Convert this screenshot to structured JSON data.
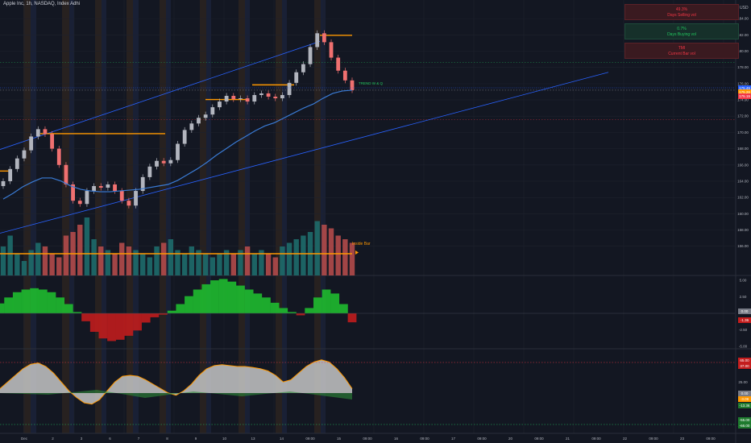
{
  "header": {
    "title": "Apple Inc, 1h, NASDAQ, Index Adhi"
  },
  "currency": "USD",
  "info_panel": [
    {
      "line1": "49.3%",
      "line2": "Days Selling vol",
      "tone": "red"
    },
    {
      "line1": "0.7%",
      "line2": "Days Buying vol",
      "tone": "green"
    },
    {
      "line1": "TMI",
      "line2": "Current Bar vol",
      "tone": "red"
    }
  ],
  "annotations": {
    "inside_bar": "Inside Bar",
    "bar_label": "TREND W & Q"
  },
  "price_tags": [
    {
      "text": "175.49",
      "price": 175.49,
      "color": "#2962ff"
    },
    {
      "text": "175.28",
      "price": 175.1,
      "color": "#ff9800"
    },
    {
      "text": "175.19",
      "price": 174.8,
      "color": "#f23645"
    }
  ],
  "colors": {
    "background": "#131722",
    "grid": "#1e222d",
    "up": "#b2b5be",
    "down": "#f07070",
    "accent_orange": "#ff9800",
    "ema": "#3a7bd5",
    "channel": "#2962ff",
    "vol_up": "#1e6b6b",
    "vol_down": "#b24a4a",
    "hist_pos": "#1fbf2f",
    "hist_neg": "#c41d1d"
  },
  "chart_data": [
    {
      "type": "line",
      "title": "Price",
      "x_axis": {
        "tick_labels": [
          "Dec",
          "2",
          "3",
          "6",
          "7",
          "8",
          "9",
          "10",
          "13",
          "14",
          "09:00",
          "15",
          "09:00",
          "16",
          "09:00",
          "17",
          "09:00",
          "20",
          "09:00",
          "21",
          "09:00",
          "22",
          "09:00",
          "23",
          "09:00"
        ]
      },
      "y_axis": {
        "range": [
          152.6,
          185.5
        ],
        "tick_labels": [
          "184.00",
          "182.00",
          "180.00",
          "178.00",
          "176.00",
          "174.00",
          "172.00",
          "170.00",
          "168.00",
          "166.00",
          "164.00",
          "162.00",
          "160.00",
          "158.00",
          "156.00"
        ]
      },
      "series": [
        {
          "label": "Close",
          "values": [
            164,
            165.5,
            166.8,
            167.8,
            169.5,
            170.4,
            169.8,
            168,
            166,
            163.6,
            161.6,
            161.2,
            162.8,
            163.4,
            163.2,
            163.6,
            162.8,
            161.6,
            161,
            162.8,
            164.5,
            165.8,
            166.5,
            166.2,
            166.6,
            168.6,
            170.3,
            171.1,
            171.8,
            172.2,
            173.1,
            173.8,
            174.5,
            174.1,
            174.2,
            173.8,
            174.6,
            174.8,
            174.4,
            174.2,
            174.6,
            176.1,
            177.4,
            178.4,
            180.5,
            182.2,
            181.1,
            179.2,
            177.6,
            176.4,
            175.2
          ]
        },
        {
          "label": "EMA",
          "values": [
            161.8,
            162.5,
            163.3,
            163.9,
            164.4,
            164.4,
            164.0,
            163.4,
            163.0,
            162.8,
            162.7,
            162.7,
            162.8,
            162.9,
            163.0,
            163.2,
            163.4,
            163.6,
            164.1,
            164.8,
            165.5,
            166.3,
            167.2,
            168.0,
            168.8,
            169.5,
            170.2,
            170.8,
            171.2,
            171.8,
            172.4,
            173.0,
            173.5,
            174.2,
            174.8,
            175.1,
            175.2
          ]
        }
      ],
      "levels": [
        165.25,
        169.85,
        174.05,
        175.85,
        181.95
      ]
    },
    {
      "type": "bar",
      "title": "Volume",
      "series": [
        {
          "values": [
            40,
            55,
            30,
            20,
            35,
            45,
            40,
            30,
            25,
            55,
            60,
            70,
            80,
            50,
            40,
            35,
            30,
            45,
            40,
            35,
            30,
            25,
            40,
            45,
            50,
            35,
            30,
            40,
            35,
            30,
            25,
            30,
            35,
            30,
            35,
            40,
            30,
            35,
            30,
            25,
            40,
            45,
            50,
            55,
            60,
            75,
            70,
            65,
            55,
            50,
            45
          ]
        }
      ]
    },
    {
      "type": "bar",
      "title": "Oscillator",
      "y_axis": {
        "range": [
          -7,
          7
        ],
        "tick_labels": [
          "5.00",
          "2.50",
          "-2.50",
          "-5.00"
        ]
      },
      "tags": [
        "0.00",
        "-1.36"
      ],
      "series": [
        {
          "values": [
            1.5,
            2.4,
            3.2,
            3.6,
            3.8,
            3.6,
            3.2,
            2.4,
            1.4,
            0.2,
            -1.2,
            -2.8,
            -3.8,
            -4.2,
            -4.0,
            -3.4,
            -2.6,
            -1.4,
            -0.6,
            -0.2,
            0.4,
            1.4,
            2.6,
            3.6,
            4.4,
            5.0,
            5.2,
            4.8,
            4.2,
            3.6,
            3.0,
            2.4,
            1.6,
            0.8,
            0.2,
            -0.3,
            0.8,
            2.4,
            3.6,
            3.0,
            1.4,
            -1.36
          ]
        }
      ]
    },
    {
      "type": "area",
      "title": "Oscillator 2",
      "y_axis": {
        "range": [
          -100,
          100
        ],
        "tick_labels": [
          "75.00",
          "25.00",
          "-25.00",
          "-75.00"
        ]
      },
      "tags": [
        "65.00",
        "37.00",
        "0.00",
        "-3.09",
        "-13.36",
        "-55.00",
        "-66.00"
      ],
      "series": [
        {
          "values": [
            10,
            25,
            40,
            55,
            65,
            68,
            60,
            45,
            25,
            5,
            -10,
            -22,
            -25,
            -15,
            5,
            25,
            38,
            40,
            38,
            30,
            20,
            10,
            0,
            -5,
            5,
            20,
            40,
            55,
            62,
            64,
            62,
            60,
            60,
            58,
            55,
            50,
            40,
            25,
            30,
            45,
            60,
            70,
            75,
            70,
            55,
            35,
            10
          ]
        }
      ]
    }
  ]
}
